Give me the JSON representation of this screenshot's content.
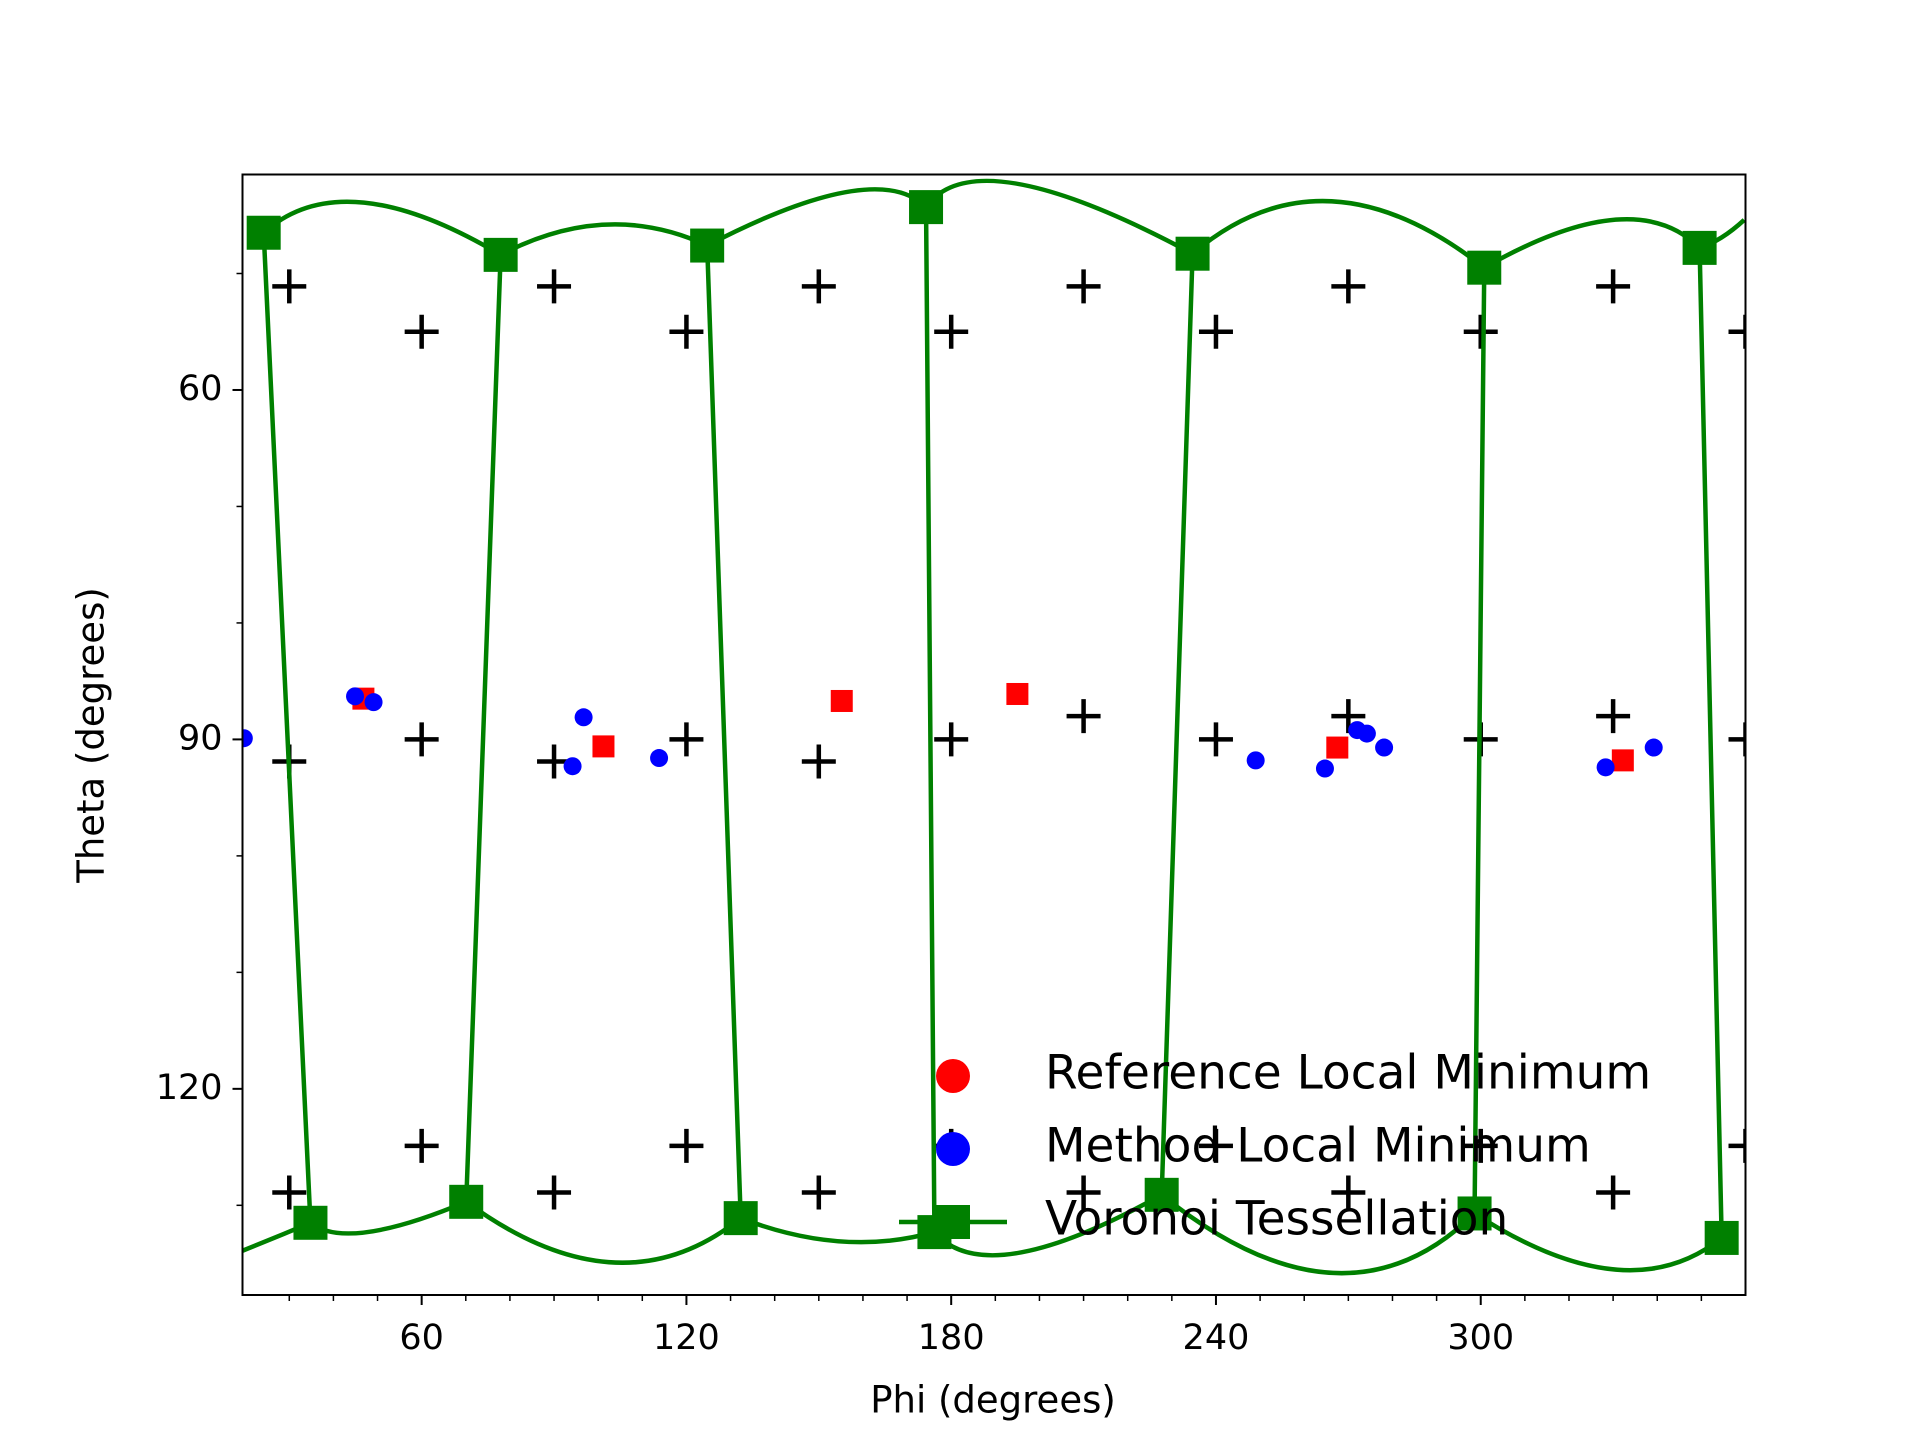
{
  "chart_data": {
    "type": "scatter",
    "xlabel": "Phi (degrees)",
    "ylabel": "Theta (degrees)",
    "xlim": [
      19.4,
      360
    ],
    "ylim": [
      137.7,
      41.5
    ],
    "xticks": [
      60,
      120,
      180,
      240,
      300
    ],
    "yticks": [
      60,
      90,
      120
    ],
    "xminorticks": [
      30,
      40,
      50,
      70,
      80,
      90,
      100,
      110,
      130,
      140,
      150,
      160,
      170,
      190,
      200,
      210,
      220,
      230,
      250,
      260,
      270,
      280,
      290,
      310,
      320,
      330,
      340,
      350
    ],
    "yminorticks": [
      50,
      70,
      80,
      100,
      110,
      130
    ],
    "legend": "lower right",
    "series": [
      {
        "color": "#000000",
        "marker": "plus",
        "x": [
          30,
          90,
          150,
          210,
          270,
          330,
          60,
          120,
          180,
          240,
          300,
          360,
          60,
          120,
          180,
          240,
          300,
          360,
          30,
          90,
          150,
          210,
          270,
          330,
          60,
          120,
          180,
          240,
          300,
          360,
          30,
          90,
          150,
          210,
          270,
          330
        ],
        "y": [
          51.1,
          51.1,
          51.1,
          51.1,
          51.1,
          51.1,
          55.0,
          55.0,
          55.0,
          55.0,
          55.0,
          55.0,
          90,
          90,
          90,
          90,
          90,
          90,
          91.9,
          91.9,
          91.9,
          88.0,
          88.0,
          88.0,
          124.9,
          124.9,
          124.9,
          124.9,
          124.9,
          124.9,
          128.9,
          128.9,
          128.9,
          128.9,
          128.9,
          128.9
        ]
      },
      {
        "name": "Reference Local Minimum",
        "color": "#ff0000",
        "marker": "square",
        "x": [
          46.8,
          101.2,
          155.2,
          195.0,
          267.5,
          332.2
        ],
        "y": [
          86.5,
          90.6,
          86.7,
          86.1,
          90.7,
          91.8
        ]
      },
      {
        "name": "Method Local Minimum",
        "color": "#0000ff",
        "marker": "circle",
        "x": [
          19.7,
          44.9,
          49.1,
          94.2,
          96.7,
          113.8,
          249.0,
          264.7,
          272.0,
          274.2,
          278.1,
          328.3,
          339.2
        ],
        "y": [
          89.9,
          86.3,
          86.8,
          92.3,
          88.1,
          91.6,
          91.8,
          92.5,
          89.2,
          89.5,
          90.7,
          92.4,
          90.7
        ]
      },
      {
        "name": "Voronoi Tessellation",
        "color": "#008000",
        "marker": "square",
        "line": true,
        "x": [
          24.2,
          46.6,
          77.9,
          101.7,
          124.7,
          156.3,
          174.3,
          195.0,
          234.7,
          266.1,
          300.8,
          330.0,
          349.6,
          354.6,
          359.7,
          null,
          19.4,
          27.2,
          34.8,
          47.7,
          70.1,
          103.1,
          132.3,
          154.9,
          176.2,
          195.0,
          227.7,
          266.1,
          298.6,
          330.0,
          354.6,
          null,
          24.2,
          34.8,
          null,
          77.9,
          70.1,
          null,
          124.7,
          132.3,
          null,
          174.3,
          176.2,
          null,
          234.7,
          227.7,
          null,
          300.8,
          298.6,
          null,
          349.6,
          354.6
        ],
        "y": [
          46.5,
          43.9,
          48.4,
          45.8,
          47.6,
          43.0,
          44.3,
          42.3,
          48.3,
          43.8,
          49.5,
          45.4,
          47.8,
          46.9,
          45.4,
          null,
          133.9,
          132.7,
          131.5,
          132.3,
          129.7,
          134.9,
          131.1,
          133.1,
          132.3,
          134.1,
          129.1,
          135.8,
          130.7,
          135.5,
          132.8,
          null,
          46.5,
          131.5,
          null,
          48.4,
          129.7,
          null,
          47.6,
          131.1,
          null,
          44.3,
          132.3,
          null,
          48.3,
          129.1,
          null,
          49.5,
          130.7,
          null,
          47.8,
          132.8
        ],
        "vertices": {
          "x": [
            24.2,
            77.9,
            124.7,
            174.3,
            234.7,
            300.8,
            349.6,
            34.8,
            70.1,
            132.3,
            176.2,
            227.7,
            298.6,
            354.6
          ],
          "y": [
            46.5,
            48.4,
            47.6,
            44.3,
            48.3,
            49.5,
            47.8,
            131.5,
            129.7,
            131.1,
            132.3,
            129.1,
            130.7,
            132.8
          ]
        }
      }
    ]
  }
}
